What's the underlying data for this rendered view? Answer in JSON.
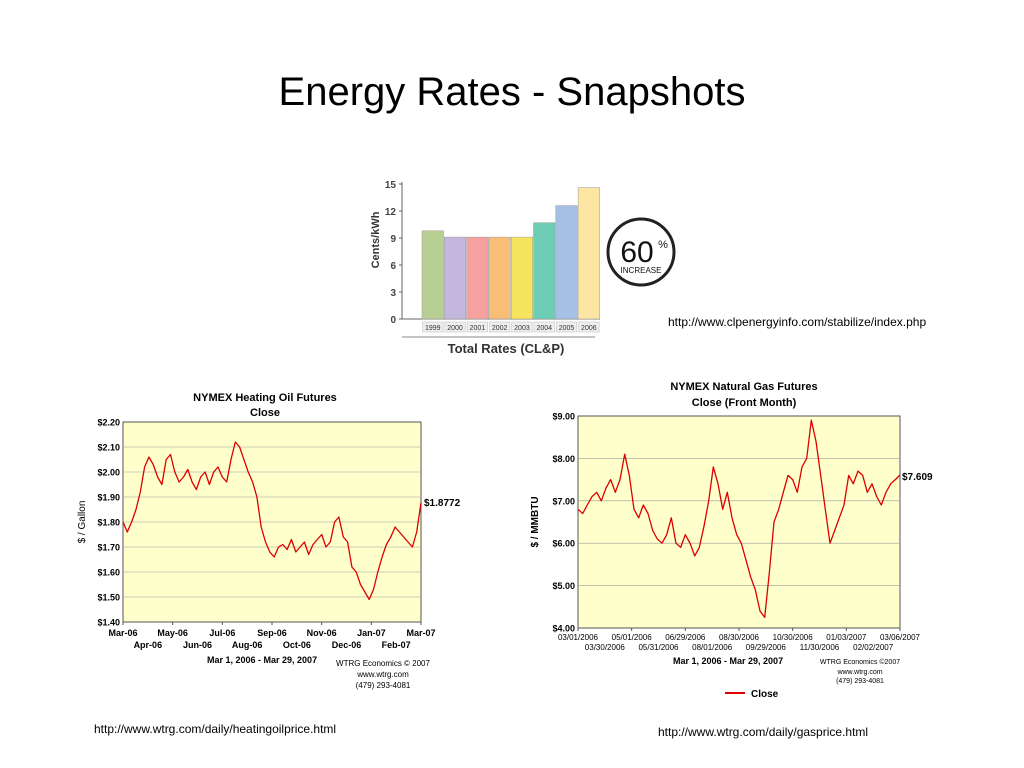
{
  "slide": {
    "title": "Energy Rates - Snapshots"
  },
  "links": {
    "clp": "http://www.clpenergyinfo.com/stabilize/index.php",
    "heating_oil": "http://www.wtrg.com/daily/heatingoilprice.html",
    "gas": "http://www.wtrg.com/daily/gasprice.html"
  },
  "chart_data": [
    {
      "type": "bar",
      "title": "Total Rates (CL&P)",
      "ylabel": "Cents/kWh",
      "ylim": [
        0,
        15
      ],
      "yticks": [
        "0",
        "3",
        "6",
        "9",
        "12",
        "15"
      ],
      "yticks_vals": [
        0,
        3,
        6,
        9,
        12,
        15
      ],
      "categories": [
        "1999",
        "2000",
        "2001",
        "2002",
        "2003",
        "2004",
        "2005",
        "2006"
      ],
      "values": [
        9.8,
        9.1,
        9.1,
        9.1,
        9.1,
        10.7,
        12.6,
        14.6
      ],
      "colors": [
        "#b7cf93",
        "#c4b7dd",
        "#f8a0a0",
        "#f9be76",
        "#f6e45e",
        "#6fcdb6",
        "#a6bfe4",
        "#fde6a3"
      ],
      "badge": {
        "number": "60",
        "percent": "%",
        "text": "INCREASE"
      },
      "grid": false
    },
    {
      "type": "line",
      "title": "NYMEX Heating Oil Futures",
      "subtitle": "Close",
      "ylabel": "$ / Gallon",
      "ylim": [
        1.4,
        2.2
      ],
      "yticks": [
        "$2.20",
        "$2.10",
        "$2.00",
        "$1.90",
        "$1.80",
        "$1.70",
        "$1.60",
        "$1.50",
        "$1.40"
      ],
      "yticks_vals": [
        2.2,
        2.1,
        2.0,
        1.9,
        1.8,
        1.7,
        1.6,
        1.5,
        1.4
      ],
      "xticks_top": [
        "Mar-06",
        "May-06",
        "Jul-06",
        "Sep-06",
        "Nov-06",
        "Jan-07",
        "Mar-07"
      ],
      "xticks_bottom": [
        "Apr-06",
        "Jun-06",
        "Aug-06",
        "Oct-06",
        "Dec-06",
        "Feb-07"
      ],
      "daterange": "Mar 1, 2006 - Mar 29, 2007",
      "last_label": "$1.8772",
      "credit": [
        "WTRG Economics © 2007",
        "www.wtrg.com",
        "(479) 293-4081"
      ],
      "series": [
        {
          "values": [
            1.8,
            1.76,
            1.8,
            1.85,
            1.92,
            2.02,
            2.06,
            2.03,
            1.98,
            1.95,
            2.05,
            2.07,
            2.0,
            1.96,
            1.98,
            2.01,
            1.96,
            1.93,
            1.98,
            2.0,
            1.95,
            2.0,
            2.02,
            1.98,
            1.96,
            2.05,
            2.12,
            2.1,
            2.05,
            2.0,
            1.96,
            1.9,
            1.78,
            1.72,
            1.68,
            1.66,
            1.7,
            1.71,
            1.69,
            1.73,
            1.68,
            1.7,
            1.72,
            1.67,
            1.71,
            1.73,
            1.75,
            1.7,
            1.72,
            1.8,
            1.82,
            1.74,
            1.72,
            1.62,
            1.6,
            1.55,
            1.52,
            1.49,
            1.53,
            1.6,
            1.66,
            1.71,
            1.74,
            1.78,
            1.76,
            1.74,
            1.72,
            1.7,
            1.76,
            1.8772
          ]
        }
      ],
      "grid": true
    },
    {
      "type": "line",
      "title": "NYMEX Natural Gas Futures",
      "subtitle": "Close (Front Month)",
      "ylabel": "$ / MMBTU",
      "ylim": [
        4.0,
        9.0
      ],
      "yticks": [
        "$9.00",
        "$8.00",
        "$7.00",
        "$6.00",
        "$5.00",
        "$4.00"
      ],
      "yticks_vals": [
        9,
        8,
        7,
        6,
        5,
        4
      ],
      "xticks_top": [
        "03/01/2006",
        "05/01/2006",
        "06/29/2006",
        "08/30/2006",
        "10/30/2006",
        "01/03/2007",
        "03/06/2007"
      ],
      "xticks_bottom": [
        "03/30/2006",
        "05/31/2006",
        "08/01/2006",
        "09/29/2006",
        "11/30/2006",
        "02/02/2007"
      ],
      "daterange": "Mar 1, 2006 - Mar 29, 2007",
      "last_label": "$7.609",
      "credit": [
        "WTRG Economics ©2007",
        "www.wtrg.com",
        "(479) 293-4081"
      ],
      "legend": {
        "label": "Close",
        "position": "bottom"
      },
      "series": [
        {
          "name": "Close",
          "values": [
            6.8,
            6.7,
            6.9,
            7.1,
            7.2,
            7.0,
            7.3,
            7.5,
            7.2,
            7.5,
            8.1,
            7.6,
            6.8,
            6.6,
            6.9,
            6.7,
            6.3,
            6.1,
            6.0,
            6.2,
            6.6,
            6.0,
            5.9,
            6.2,
            6.0,
            5.7,
            5.9,
            6.4,
            7.0,
            7.8,
            7.4,
            6.8,
            7.2,
            6.6,
            6.2,
            6.0,
            5.6,
            5.2,
            4.9,
            4.4,
            4.25,
            5.3,
            6.5,
            6.8,
            7.2,
            7.6,
            7.5,
            7.2,
            7.8,
            8.0,
            8.9,
            8.4,
            7.6,
            6.8,
            6.0,
            6.3,
            6.6,
            6.9,
            7.6,
            7.4,
            7.7,
            7.6,
            7.2,
            7.4,
            7.1,
            6.9,
            7.2,
            7.4,
            7.5,
            7.609
          ]
        }
      ],
      "grid": true
    }
  ]
}
